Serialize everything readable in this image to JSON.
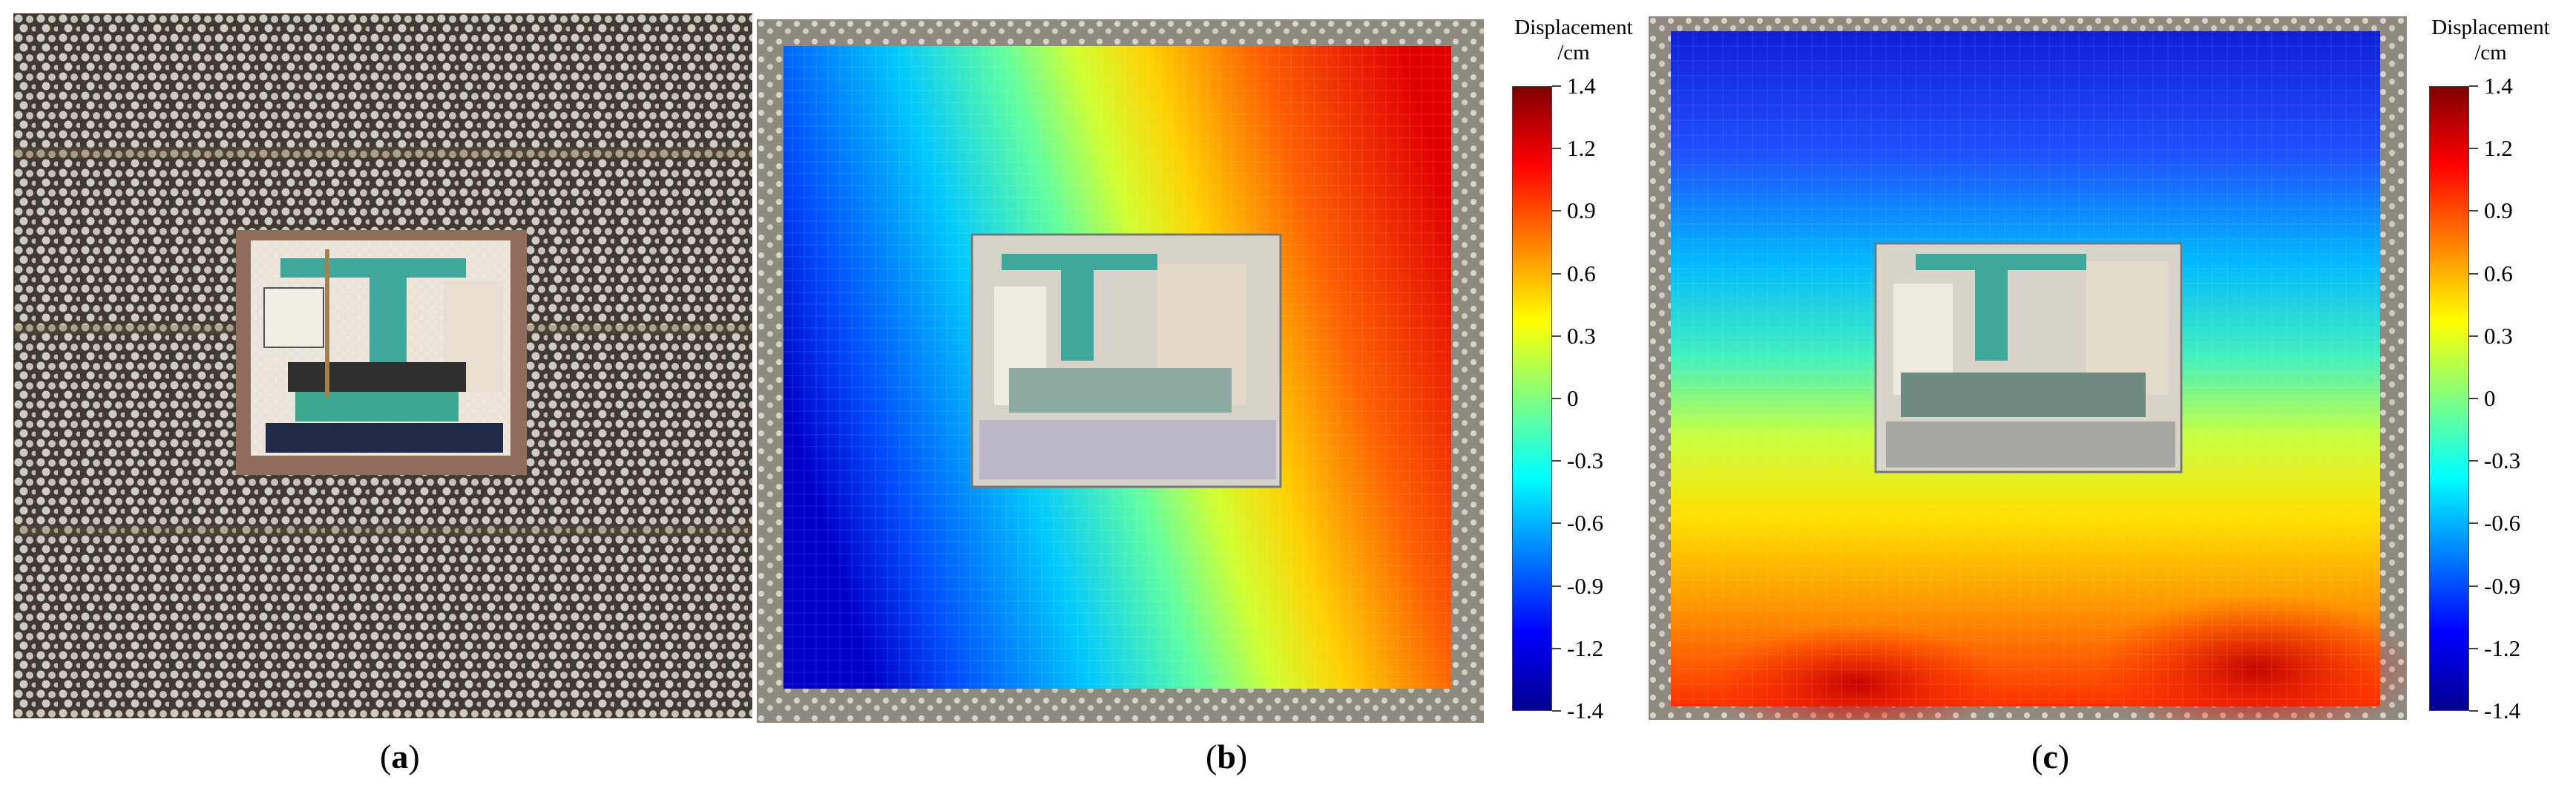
{
  "figure": {
    "panels": [
      {
        "id": "a",
        "caption_open": "(",
        "caption_letter": "a",
        "caption_close": ")",
        "content": "photograph"
      },
      {
        "id": "b",
        "caption_open": "(",
        "caption_letter": "b",
        "caption_close": ")",
        "content": "displacement-contour"
      },
      {
        "id": "c",
        "caption_open": "(",
        "caption_letter": "c",
        "caption_close": ")",
        "content": "displacement-contour"
      }
    ],
    "colorbar": {
      "title_line1": "Displacement",
      "title_line2": "/cm",
      "tick_labels": [
        "1.4",
        "1.2",
        "0.9",
        "0.6",
        "0.3",
        "0",
        "-0.3",
        "-0.6",
        "-0.9",
        "-1.2",
        "-1.4"
      ],
      "colormap": "jet",
      "range": [
        -1.4,
        1.4
      ]
    },
    "colors": {
      "jet_stops": [
        "#800000",
        "#ff0000",
        "#ff8000",
        "#ffff00",
        "#80ff80",
        "#00ffff",
        "#0080ff",
        "#0000ff",
        "#00008f"
      ],
      "speckle_dark": "#3b3833",
      "speckle_light": "#e8e6e0",
      "frame": "#8e8a80",
      "equipment_teal": "#3fa89a"
    }
  }
}
